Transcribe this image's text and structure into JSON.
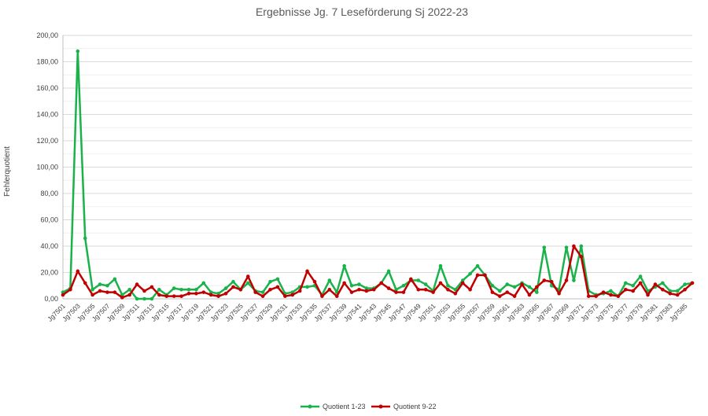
{
  "chart_data": {
    "type": "line",
    "title": "Ergebnisse Jg. 7 Leseförderung Sj 2022-23",
    "xlabel": "",
    "ylabel": "Fehlerquotient",
    "ylim": [
      0,
      200
    ],
    "yticks": [
      "0,00",
      "20,00",
      "40,00",
      "60,00",
      "80,00",
      "100,00",
      "120,00",
      "140,00",
      "160,00",
      "180,00",
      "200,00"
    ],
    "grid": true,
    "legend_position": "bottom",
    "categories": [
      "Jg7501",
      "Jg7502",
      "Jg7503",
      "Jg7504",
      "Jg7505",
      "Jg7506",
      "Jg7507",
      "Jg7508",
      "Jg7509",
      "Jg7510",
      "Jg7511",
      "Jg7512",
      "Jg7513",
      "Jg7514",
      "Jg7515",
      "Jg7516",
      "Jg7517",
      "Jg7518",
      "Jg7519",
      "Jg7520",
      "Jg7521",
      "Jg7522",
      "Jg7523",
      "Jg7524",
      "Jg7525",
      "Jg7526",
      "Jg7527",
      "Jg7528",
      "Jg7529",
      "Jg7530",
      "Jg7531",
      "Jg7532",
      "Jg7533",
      "Jg7534",
      "Jg7535",
      "Jg7536",
      "Jg7537",
      "Jg7538",
      "Jg7539",
      "Jg7540",
      "Jg7541",
      "Jg7542",
      "Jg7543",
      "Jg7544",
      "Jg7545",
      "Jg7546",
      "Jg7547",
      "Jg7548",
      "Jg7549",
      "Jg7550",
      "Jg7551",
      "Jg7552",
      "Jg7553",
      "Jg7554",
      "Jg7555",
      "Jg7556",
      "Jg7557",
      "Jg7558",
      "Jg7559",
      "Jg7560",
      "Jg7561",
      "Jg7562",
      "Jg7563",
      "Jg7564",
      "Jg7565",
      "Jg7566",
      "Jg7567",
      "Jg7568",
      "Jg7569",
      "Jg7570",
      "Jg7571",
      "Jg7572",
      "Jg7573",
      "Jg7574",
      "Jg7575",
      "Jg7576",
      "Jg7577",
      "Jg7578",
      "Jg7579",
      "Jg7580",
      "Jg7581",
      "Jg7582",
      "Jg7583",
      "Jg7584",
      "Jg7585",
      "Jg7586"
    ],
    "series": [
      {
        "name": "Quotient 1-23",
        "color": "#19b24b",
        "values": [
          5,
          8,
          188,
          46,
          7,
          11,
          10,
          15,
          3,
          7,
          0,
          0,
          0,
          7,
          3,
          8,
          7,
          7,
          7,
          12,
          5,
          4,
          8,
          13,
          7,
          12,
          6,
          5,
          13,
          15,
          4,
          5,
          9,
          9,
          10,
          3,
          14,
          5,
          25,
          10,
          11,
          8,
          8,
          12,
          21,
          7,
          10,
          14,
          14,
          11,
          6,
          25,
          10,
          7,
          14,
          19,
          25,
          18,
          10,
          6,
          11,
          9,
          12,
          9,
          5,
          39,
          10,
          7,
          39,
          14,
          40,
          6,
          3,
          4,
          6,
          2,
          12,
          10,
          17,
          6,
          9,
          12,
          6,
          6,
          11,
          12
        ]
      },
      {
        "name": "Quotient 9-22",
        "color": "#c00000",
        "values": [
          3,
          7,
          21,
          12,
          3,
          6,
          5,
          5,
          1,
          3,
          11,
          6,
          9,
          3,
          2,
          2,
          2,
          4,
          4,
          5,
          3,
          2,
          4,
          9,
          7,
          17,
          5,
          2,
          7,
          9,
          2,
          3,
          6,
          21,
          13,
          2,
          7,
          2,
          12,
          5,
          7,
          6,
          7,
          12,
          8,
          5,
          5,
          15,
          7,
          7,
          5,
          12,
          7,
          4,
          12,
          7,
          18,
          18,
          5,
          2,
          5,
          2,
          11,
          3,
          9,
          14,
          13,
          4,
          14,
          40,
          32,
          2,
          2,
          5,
          3,
          2,
          7,
          6,
          12,
          3,
          11,
          7,
          4,
          3,
          7,
          12
        ]
      }
    ]
  }
}
